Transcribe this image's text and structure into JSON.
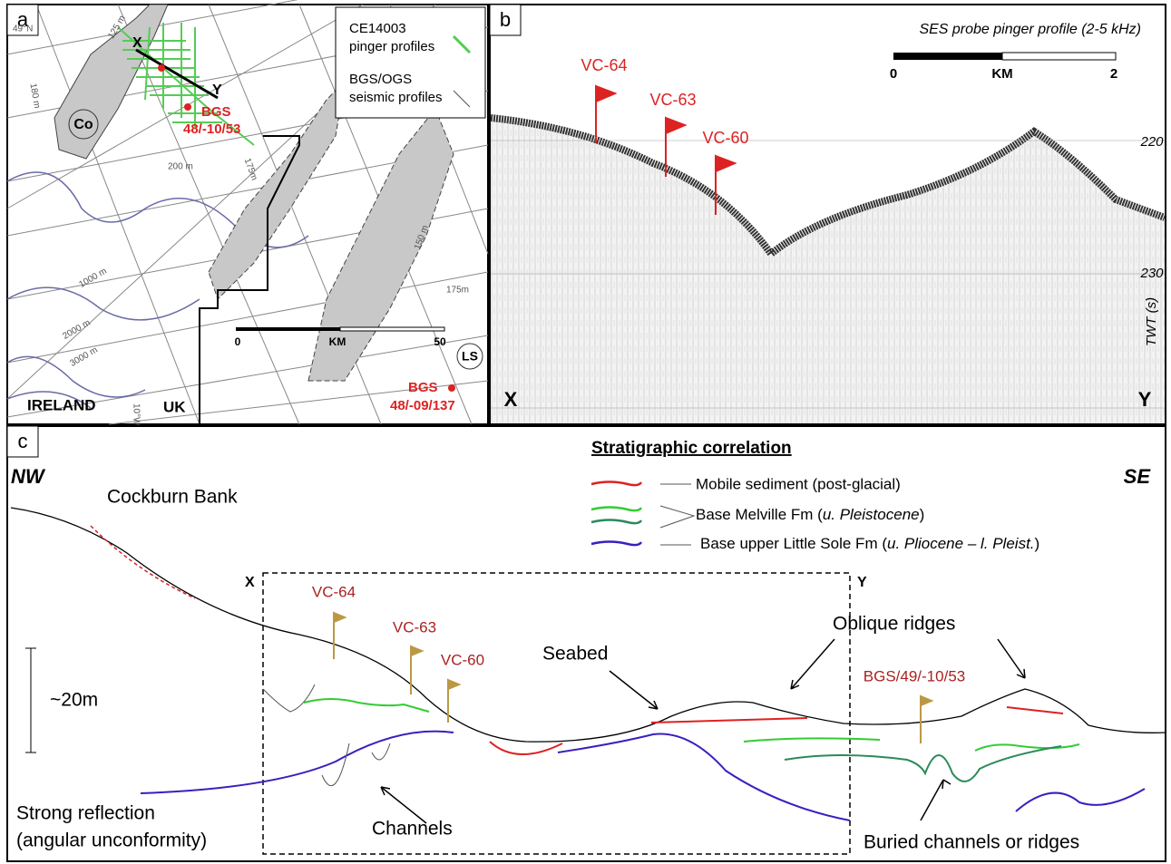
{
  "panel_a": {
    "label": "a",
    "legend": [
      "CE14003",
      "pinger profiles",
      "BGS/OGS",
      "seismic profiles"
    ],
    "map_labels": [
      "49°N",
      "125 m",
      "180 m",
      "X",
      "Y",
      "BGS",
      "48/-10/53",
      "Co",
      "200 m",
      "175m",
      "150 m",
      "1000 m",
      "2000 m",
      "3000 m",
      "175m",
      "LS",
      "BGS",
      "48/-09/137",
      "IRELAND",
      "UK",
      "10°W"
    ],
    "scale": [
      "0",
      "KM",
      "50"
    ]
  },
  "panel_b": {
    "label": "b",
    "title": "SES probe pinger profile (2-5 kHz)",
    "scale": [
      "0",
      "KM",
      "2"
    ],
    "flags": [
      "VC-64",
      "VC-63",
      "VC-60"
    ],
    "twt_labels": [
      "220",
      "230"
    ],
    "axis_label": "TWT (s)",
    "ends": [
      "X",
      "Y"
    ]
  },
  "panel_c": {
    "label": "c",
    "directions": [
      "NW",
      "SE"
    ],
    "bank": "Cockburn Bank",
    "legend_title": "Stratigraphic correlation",
    "legend": [
      {
        "text": "Mobile sediment (post-glacial)"
      },
      {
        "text": "Base Melville Fm (",
        "italic": "u. Pleistocene",
        "end": ")"
      },
      {
        "text": "Base upper Little Sole Fm (",
        "italic": "u. Pliocene – l. Pleist.",
        "end": ")"
      }
    ],
    "ends": [
      "X",
      "Y"
    ],
    "flags": [
      "VC-64",
      "VC-63",
      "VC-60",
      "BGS/49/-10/53"
    ],
    "scale": "~20m",
    "annotations": [
      "Seabed",
      "Oblique ridges",
      "Strong reflection",
      "(angular unconformity)",
      "Channels",
      "Buried channels or ridges"
    ]
  }
}
